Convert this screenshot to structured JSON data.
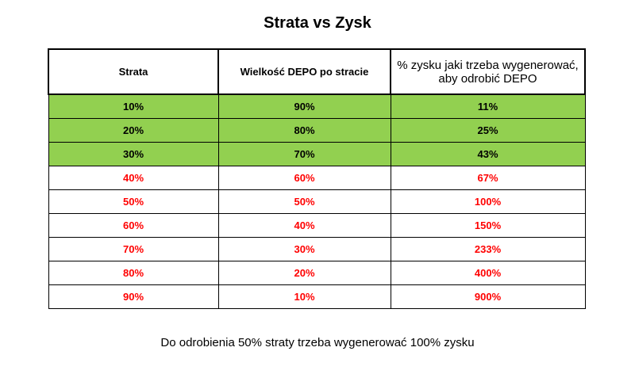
{
  "title": "Strata vs Zysk",
  "headers": [
    "Strata",
    "Wielkość DEPO po stracie",
    "% zysku jaki trzeba wygenerować, aby odrobić DEPO"
  ],
  "rows": [
    {
      "strata": "10%",
      "depo": "90%",
      "zysk": "11%",
      "status": "good"
    },
    {
      "strata": "20%",
      "depo": "80%",
      "zysk": "25%",
      "status": "good"
    },
    {
      "strata": "30%",
      "depo": "70%",
      "zysk": "43%",
      "status": "good"
    },
    {
      "strata": "40%",
      "depo": "60%",
      "zysk": "67%",
      "status": "bad"
    },
    {
      "strata": "50%",
      "depo": "50%",
      "zysk": "100%",
      "status": "bad"
    },
    {
      "strata": "60%",
      "depo": "40%",
      "zysk": "150%",
      "status": "bad"
    },
    {
      "strata": "70%",
      "depo": "30%",
      "zysk": "233%",
      "status": "bad"
    },
    {
      "strata": "80%",
      "depo": "20%",
      "zysk": "400%",
      "status": "bad"
    },
    {
      "strata": "90%",
      "depo": "10%",
      "zysk": "900%",
      "status": "bad"
    }
  ],
  "colors": {
    "good_row_fill": "#92d050",
    "bad_row_text": "#ff0000",
    "good_row_text": "#000000"
  },
  "footer": "Do odrobienia 50% straty trzeba wygenerować 100% zysku"
}
